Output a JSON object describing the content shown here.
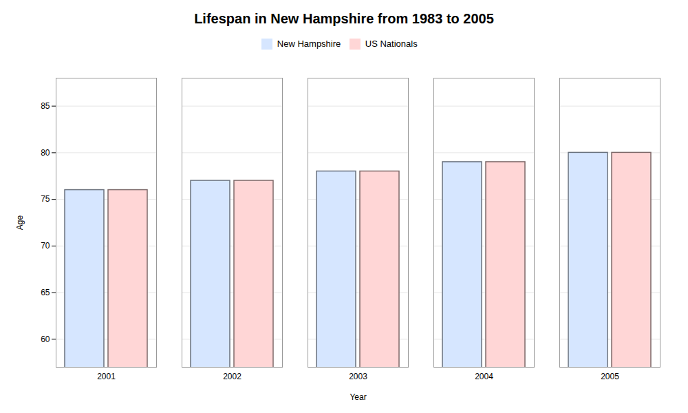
{
  "chart_data": {
    "type": "bar",
    "title": "Lifespan in New Hampshire from 1983 to 2005",
    "xlabel": "Year",
    "ylabel": "Age",
    "categories": [
      "2001",
      "2002",
      "2003",
      "2004",
      "2005"
    ],
    "series": [
      {
        "name": "New Hampshire",
        "color": "#d6e6ff",
        "values": [
          76,
          77,
          78,
          79,
          80
        ]
      },
      {
        "name": "US Nationals",
        "color": "#ffd6d6",
        "values": [
          76,
          77,
          78,
          79,
          80
        ]
      }
    ],
    "ylim": [
      57,
      88
    ],
    "yticks": [
      60,
      65,
      70,
      75,
      80,
      85
    ],
    "grid": true,
    "legend": "top"
  }
}
